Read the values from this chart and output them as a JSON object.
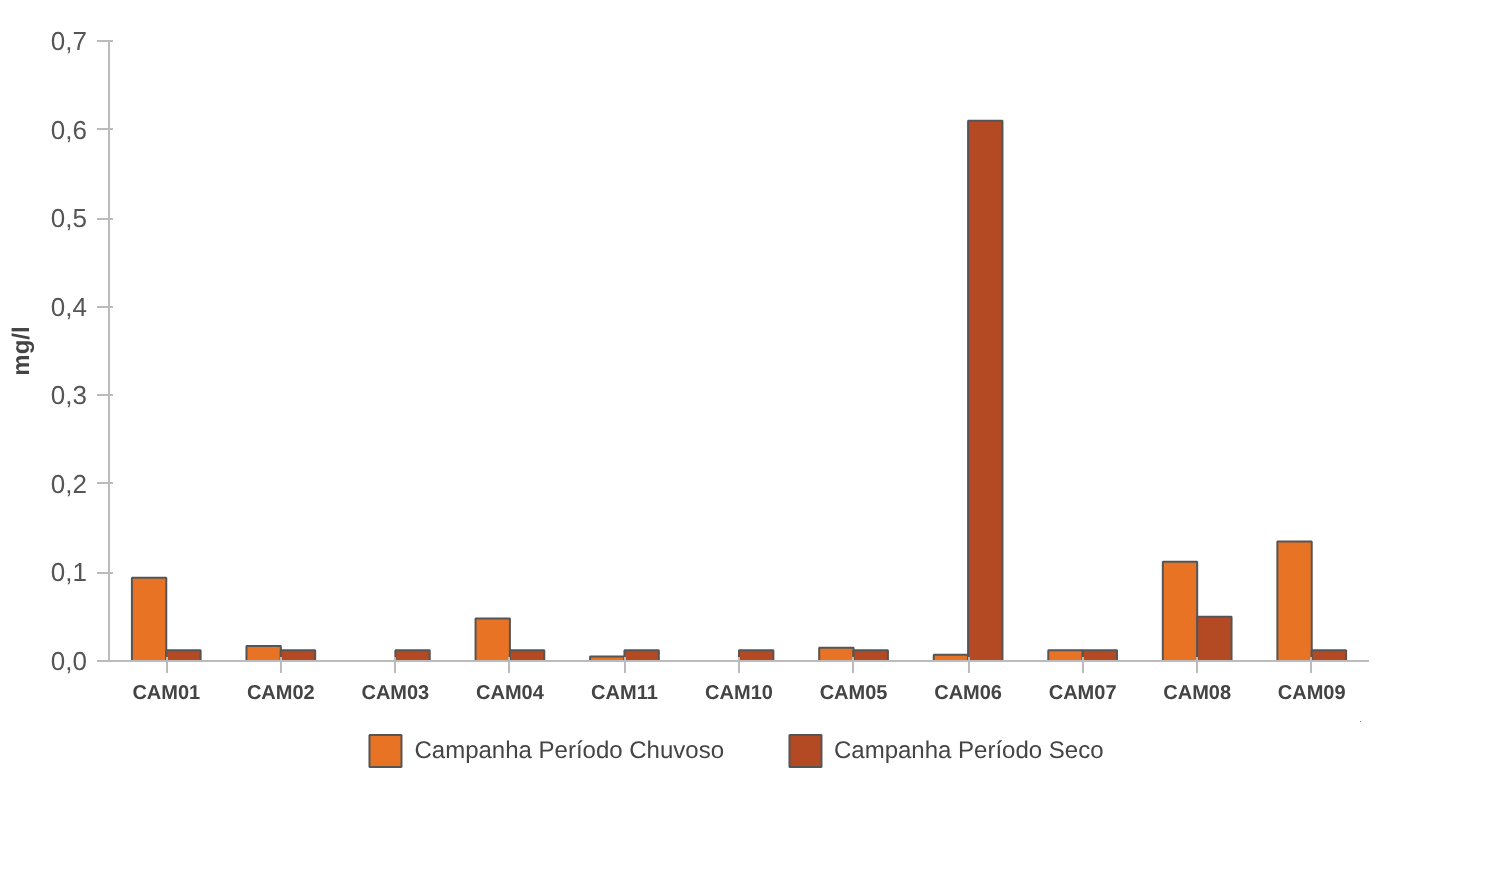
{
  "chart_data": {
    "type": "bar",
    "ylabel": "mg/l",
    "categories": [
      "CAM01",
      "CAM02",
      "CAM03",
      "CAM04",
      "CAM11",
      "CAM10",
      "CAM05",
      "CAM06",
      "CAM07",
      "CAM08",
      "CAM09"
    ],
    "series": [
      {
        "name": "Campanha Período Chuvoso",
        "color": "#e87324",
        "values": [
          0.094,
          0.017,
          null,
          0.048,
          0.005,
          null,
          0.015,
          0.007,
          0.012,
          0.112,
          0.135
        ]
      },
      {
        "name": "Campanha Período Seco",
        "color": "#b34a24",
        "values": [
          0.012,
          0.012,
          0.012,
          0.012,
          0.012,
          0.012,
          0.012,
          0.61,
          0.012,
          0.05,
          0.012
        ]
      }
    ],
    "ylim": [
      0,
      0.7
    ],
    "yticks": [
      {
        "value": 0,
        "label": "0,0"
      },
      {
        "value": 0.1,
        "label": "0,1"
      },
      {
        "value": 0.2,
        "label": "0,2"
      },
      {
        "value": 0.3,
        "label": "0,3"
      },
      {
        "value": 0.4,
        "label": "0,4"
      },
      {
        "value": 0.5,
        "label": "0,5"
      },
      {
        "value": 0.6,
        "label": "0,6"
      },
      {
        "value": 0.7,
        "label": "0,7"
      }
    ],
    "grid": false,
    "legend": "bottom"
  }
}
